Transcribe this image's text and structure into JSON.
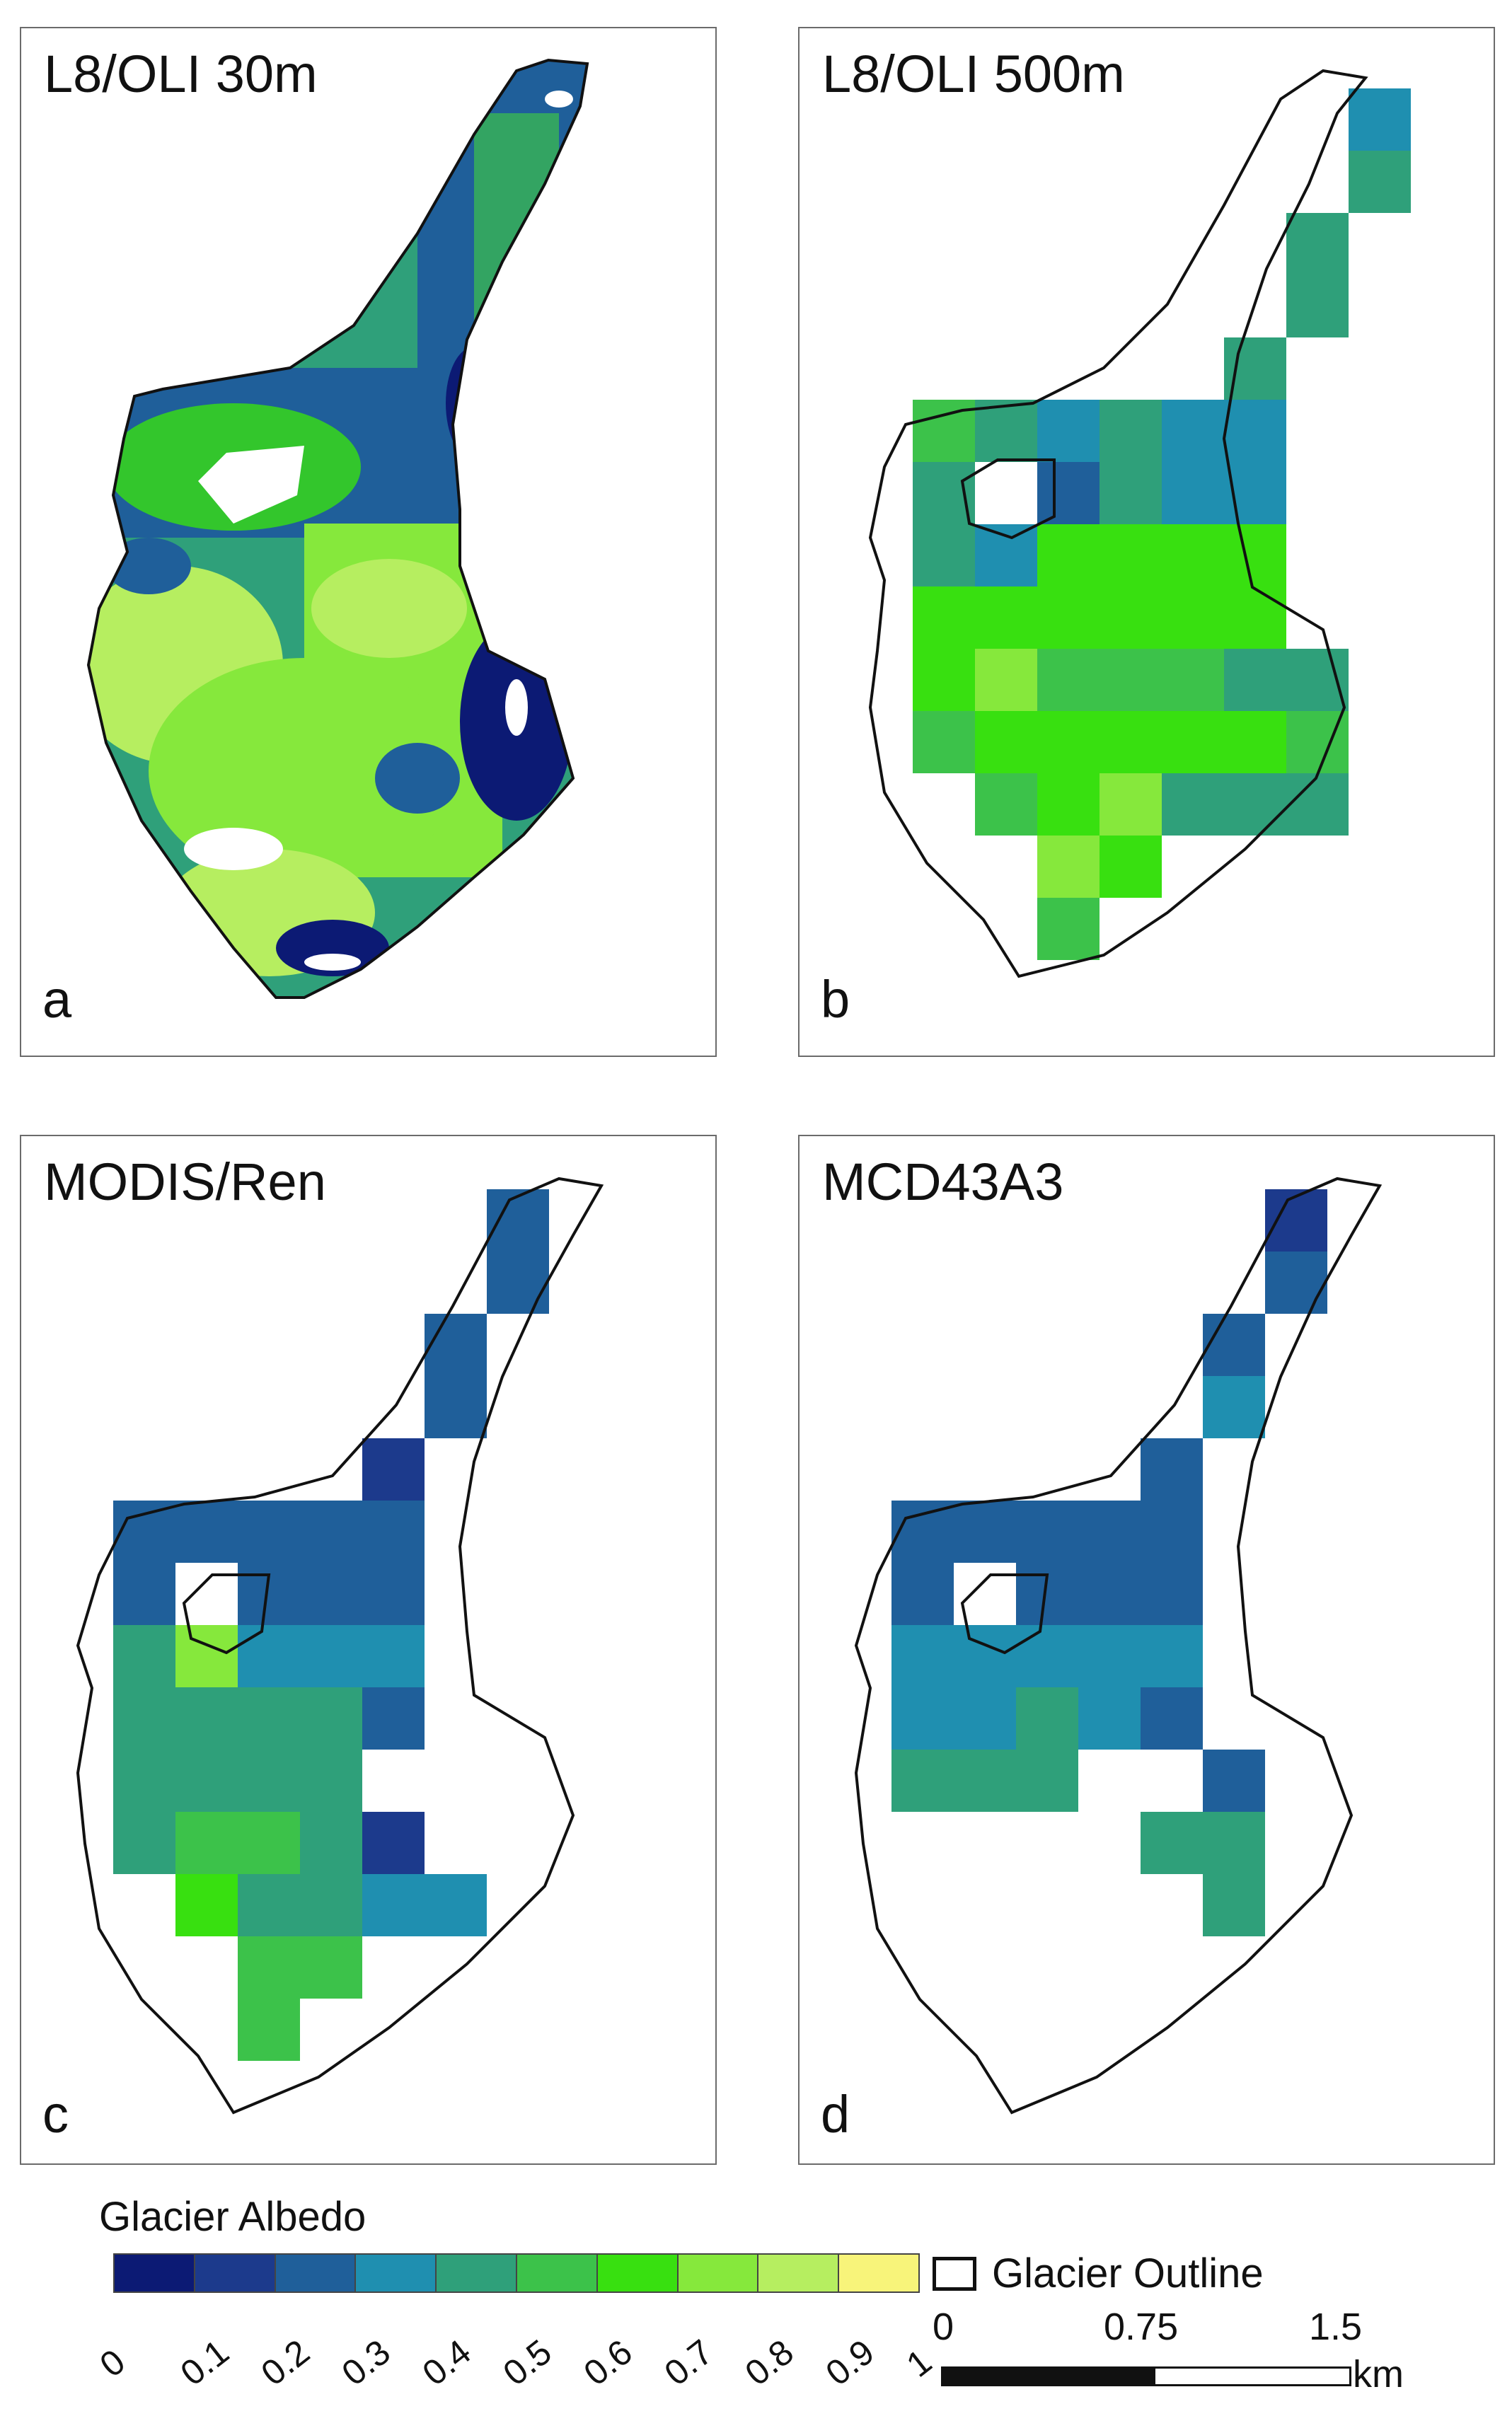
{
  "panels": [
    {
      "id": "a",
      "title": "L8/OLI 30m",
      "letter": "a"
    },
    {
      "id": "b",
      "title": "L8/OLI 500m",
      "letter": "b"
    },
    {
      "id": "c",
      "title": "MODIS/Ren",
      "letter": "c"
    },
    {
      "id": "d",
      "title": "MCD43A3",
      "letter": "d"
    }
  ],
  "legend": {
    "title": "Glacier Albedo",
    "ticks": [
      "0",
      "0.1",
      "0.2",
      "0.3",
      "0.4",
      "0.5",
      "0.6",
      "0.7",
      "0.8",
      "0.9",
      "1"
    ],
    "colors": [
      "#0c1a74",
      "#1c3a8c",
      "#1f5f9a",
      "#1f8fb0",
      "#2fa07a",
      "#3cc24a",
      "#38e010",
      "#86e83c",
      "#b6ee60",
      "#f8f47a"
    ],
    "outline_label": "Glacier Outline",
    "scalebar": {
      "ticks": [
        "0",
        "0.75",
        "1.5"
      ],
      "unit": "km"
    }
  }
}
